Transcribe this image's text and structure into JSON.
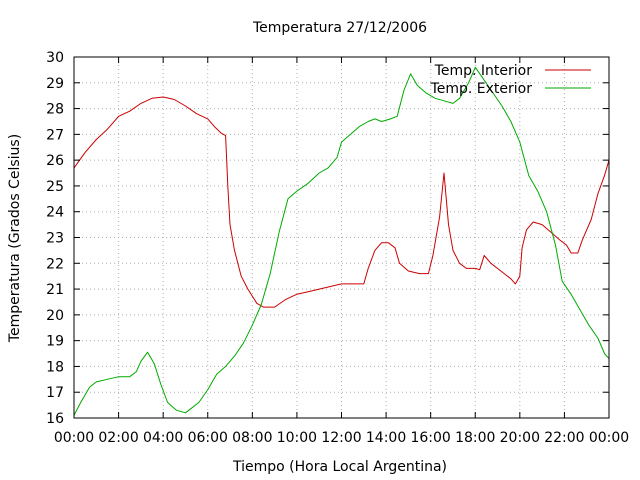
{
  "chart_data": {
    "type": "line",
    "title": "Temperatura 27/12/2006",
    "xlabel": "Tiempo (Hora Local Argentina)",
    "ylabel": "Temperatura (Grados Celsius)",
    "xlim": [
      0,
      24
    ],
    "ylim": [
      16,
      30
    ],
    "grid": true,
    "legend_position": "top-right",
    "x_ticks": [
      {
        "value": 0,
        "label": "00:00"
      },
      {
        "value": 2,
        "label": "02:00"
      },
      {
        "value": 4,
        "label": "04:00"
      },
      {
        "value": 6,
        "label": "06:00"
      },
      {
        "value": 8,
        "label": "08:00"
      },
      {
        "value": 10,
        "label": "10:00"
      },
      {
        "value": 12,
        "label": "12:00"
      },
      {
        "value": 14,
        "label": "14:00"
      },
      {
        "value": 16,
        "label": "16:00"
      },
      {
        "value": 18,
        "label": "18:00"
      },
      {
        "value": 20,
        "label": "20:00"
      },
      {
        "value": 22,
        "label": "22:00"
      },
      {
        "value": 24,
        "label": "00:00"
      }
    ],
    "y_ticks": [
      16,
      17,
      18,
      19,
      20,
      21,
      22,
      23,
      24,
      25,
      26,
      27,
      28,
      29,
      30
    ],
    "series": [
      {
        "name": "Temp. Interior",
        "color": "#cc0000",
        "points": [
          [
            0,
            25.7
          ],
          [
            0.5,
            26.3
          ],
          [
            1,
            26.8
          ],
          [
            1.5,
            27.2
          ],
          [
            2,
            27.7
          ],
          [
            2.5,
            27.9
          ],
          [
            3,
            28.2
          ],
          [
            3.5,
            28.4
          ],
          [
            4,
            28.45
          ],
          [
            4.5,
            28.35
          ],
          [
            5,
            28.1
          ],
          [
            5.5,
            27.8
          ],
          [
            6,
            27.6
          ],
          [
            6.3,
            27.3
          ],
          [
            6.6,
            27.05
          ],
          [
            6.8,
            26.95
          ],
          [
            6.9,
            25.0
          ],
          [
            7.0,
            23.5
          ],
          [
            7.2,
            22.5
          ],
          [
            7.5,
            21.5
          ],
          [
            7.8,
            21.0
          ],
          [
            8.2,
            20.45
          ],
          [
            8.5,
            20.3
          ],
          [
            9,
            20.3
          ],
          [
            9.5,
            20.6
          ],
          [
            10,
            20.8
          ],
          [
            10.5,
            20.9
          ],
          [
            11,
            21.0
          ],
          [
            11.5,
            21.1
          ],
          [
            12,
            21.2
          ],
          [
            12.5,
            21.2
          ],
          [
            13,
            21.2
          ],
          [
            13.2,
            21.8
          ],
          [
            13.5,
            22.5
          ],
          [
            13.8,
            22.8
          ],
          [
            14.1,
            22.8
          ],
          [
            14.4,
            22.6
          ],
          [
            14.6,
            22.0
          ],
          [
            15,
            21.7
          ],
          [
            15.5,
            21.6
          ],
          [
            15.9,
            21.6
          ],
          [
            16.1,
            22.3
          ],
          [
            16.4,
            23.8
          ],
          [
            16.6,
            25.5
          ],
          [
            16.8,
            23.5
          ],
          [
            17.0,
            22.5
          ],
          [
            17.3,
            22.0
          ],
          [
            17.6,
            21.8
          ],
          [
            18,
            21.8
          ],
          [
            18.2,
            21.75
          ],
          [
            18.4,
            22.3
          ],
          [
            18.7,
            22.0
          ],
          [
            19,
            21.8
          ],
          [
            19.3,
            21.6
          ],
          [
            19.6,
            21.4
          ],
          [
            19.8,
            21.2
          ],
          [
            20.0,
            21.5
          ],
          [
            20.1,
            22.6
          ],
          [
            20.3,
            23.3
          ],
          [
            20.6,
            23.6
          ],
          [
            21.0,
            23.5
          ],
          [
            21.4,
            23.2
          ],
          [
            21.8,
            22.9
          ],
          [
            22.1,
            22.7
          ],
          [
            22.3,
            22.4
          ],
          [
            22.6,
            22.4
          ],
          [
            22.8,
            22.9
          ],
          [
            23.2,
            23.7
          ],
          [
            23.5,
            24.7
          ],
          [
            23.8,
            25.4
          ],
          [
            24,
            26.0
          ]
        ]
      },
      {
        "name": "Temp. Exterior",
        "color": "#00aa00",
        "points": [
          [
            0,
            16.1
          ],
          [
            0.3,
            16.6
          ],
          [
            0.7,
            17.2
          ],
          [
            1,
            17.4
          ],
          [
            1.5,
            17.5
          ],
          [
            2,
            17.6
          ],
          [
            2.5,
            17.6
          ],
          [
            2.8,
            17.8
          ],
          [
            3.0,
            18.2
          ],
          [
            3.3,
            18.55
          ],
          [
            3.6,
            18.1
          ],
          [
            3.9,
            17.3
          ],
          [
            4.2,
            16.6
          ],
          [
            4.6,
            16.3
          ],
          [
            5,
            16.2
          ],
          [
            5.3,
            16.4
          ],
          [
            5.6,
            16.6
          ],
          [
            6,
            17.1
          ],
          [
            6.4,
            17.7
          ],
          [
            6.8,
            18.0
          ],
          [
            7.2,
            18.4
          ],
          [
            7.6,
            18.9
          ],
          [
            8,
            19.6
          ],
          [
            8.4,
            20.4
          ],
          [
            8.8,
            21.6
          ],
          [
            9.2,
            23.2
          ],
          [
            9.6,
            24.5
          ],
          [
            10,
            24.8
          ],
          [
            10.5,
            25.1
          ],
          [
            11,
            25.5
          ],
          [
            11.4,
            25.7
          ],
          [
            11.8,
            26.1
          ],
          [
            12,
            26.7
          ],
          [
            12.4,
            27.0
          ],
          [
            12.8,
            27.3
          ],
          [
            13.2,
            27.5
          ],
          [
            13.5,
            27.6
          ],
          [
            13.8,
            27.5
          ],
          [
            14.2,
            27.6
          ],
          [
            14.5,
            27.7
          ],
          [
            14.8,
            28.7
          ],
          [
            15.1,
            29.35
          ],
          [
            15.4,
            28.9
          ],
          [
            15.8,
            28.6
          ],
          [
            16.2,
            28.4
          ],
          [
            16.6,
            28.3
          ],
          [
            17.0,
            28.2
          ],
          [
            17.3,
            28.4
          ],
          [
            17.7,
            29.0
          ],
          [
            18.0,
            29.6
          ],
          [
            18.4,
            29.1
          ],
          [
            18.8,
            28.6
          ],
          [
            19.2,
            28.1
          ],
          [
            19.6,
            27.5
          ],
          [
            20.0,
            26.7
          ],
          [
            20.4,
            25.4
          ],
          [
            20.8,
            24.8
          ],
          [
            21.2,
            24.0
          ],
          [
            21.6,
            22.7
          ],
          [
            21.9,
            21.3
          ],
          [
            22.3,
            20.8
          ],
          [
            22.7,
            20.2
          ],
          [
            23.1,
            19.6
          ],
          [
            23.5,
            19.1
          ],
          [
            23.8,
            18.5
          ],
          [
            24,
            18.3
          ]
        ]
      }
    ]
  }
}
